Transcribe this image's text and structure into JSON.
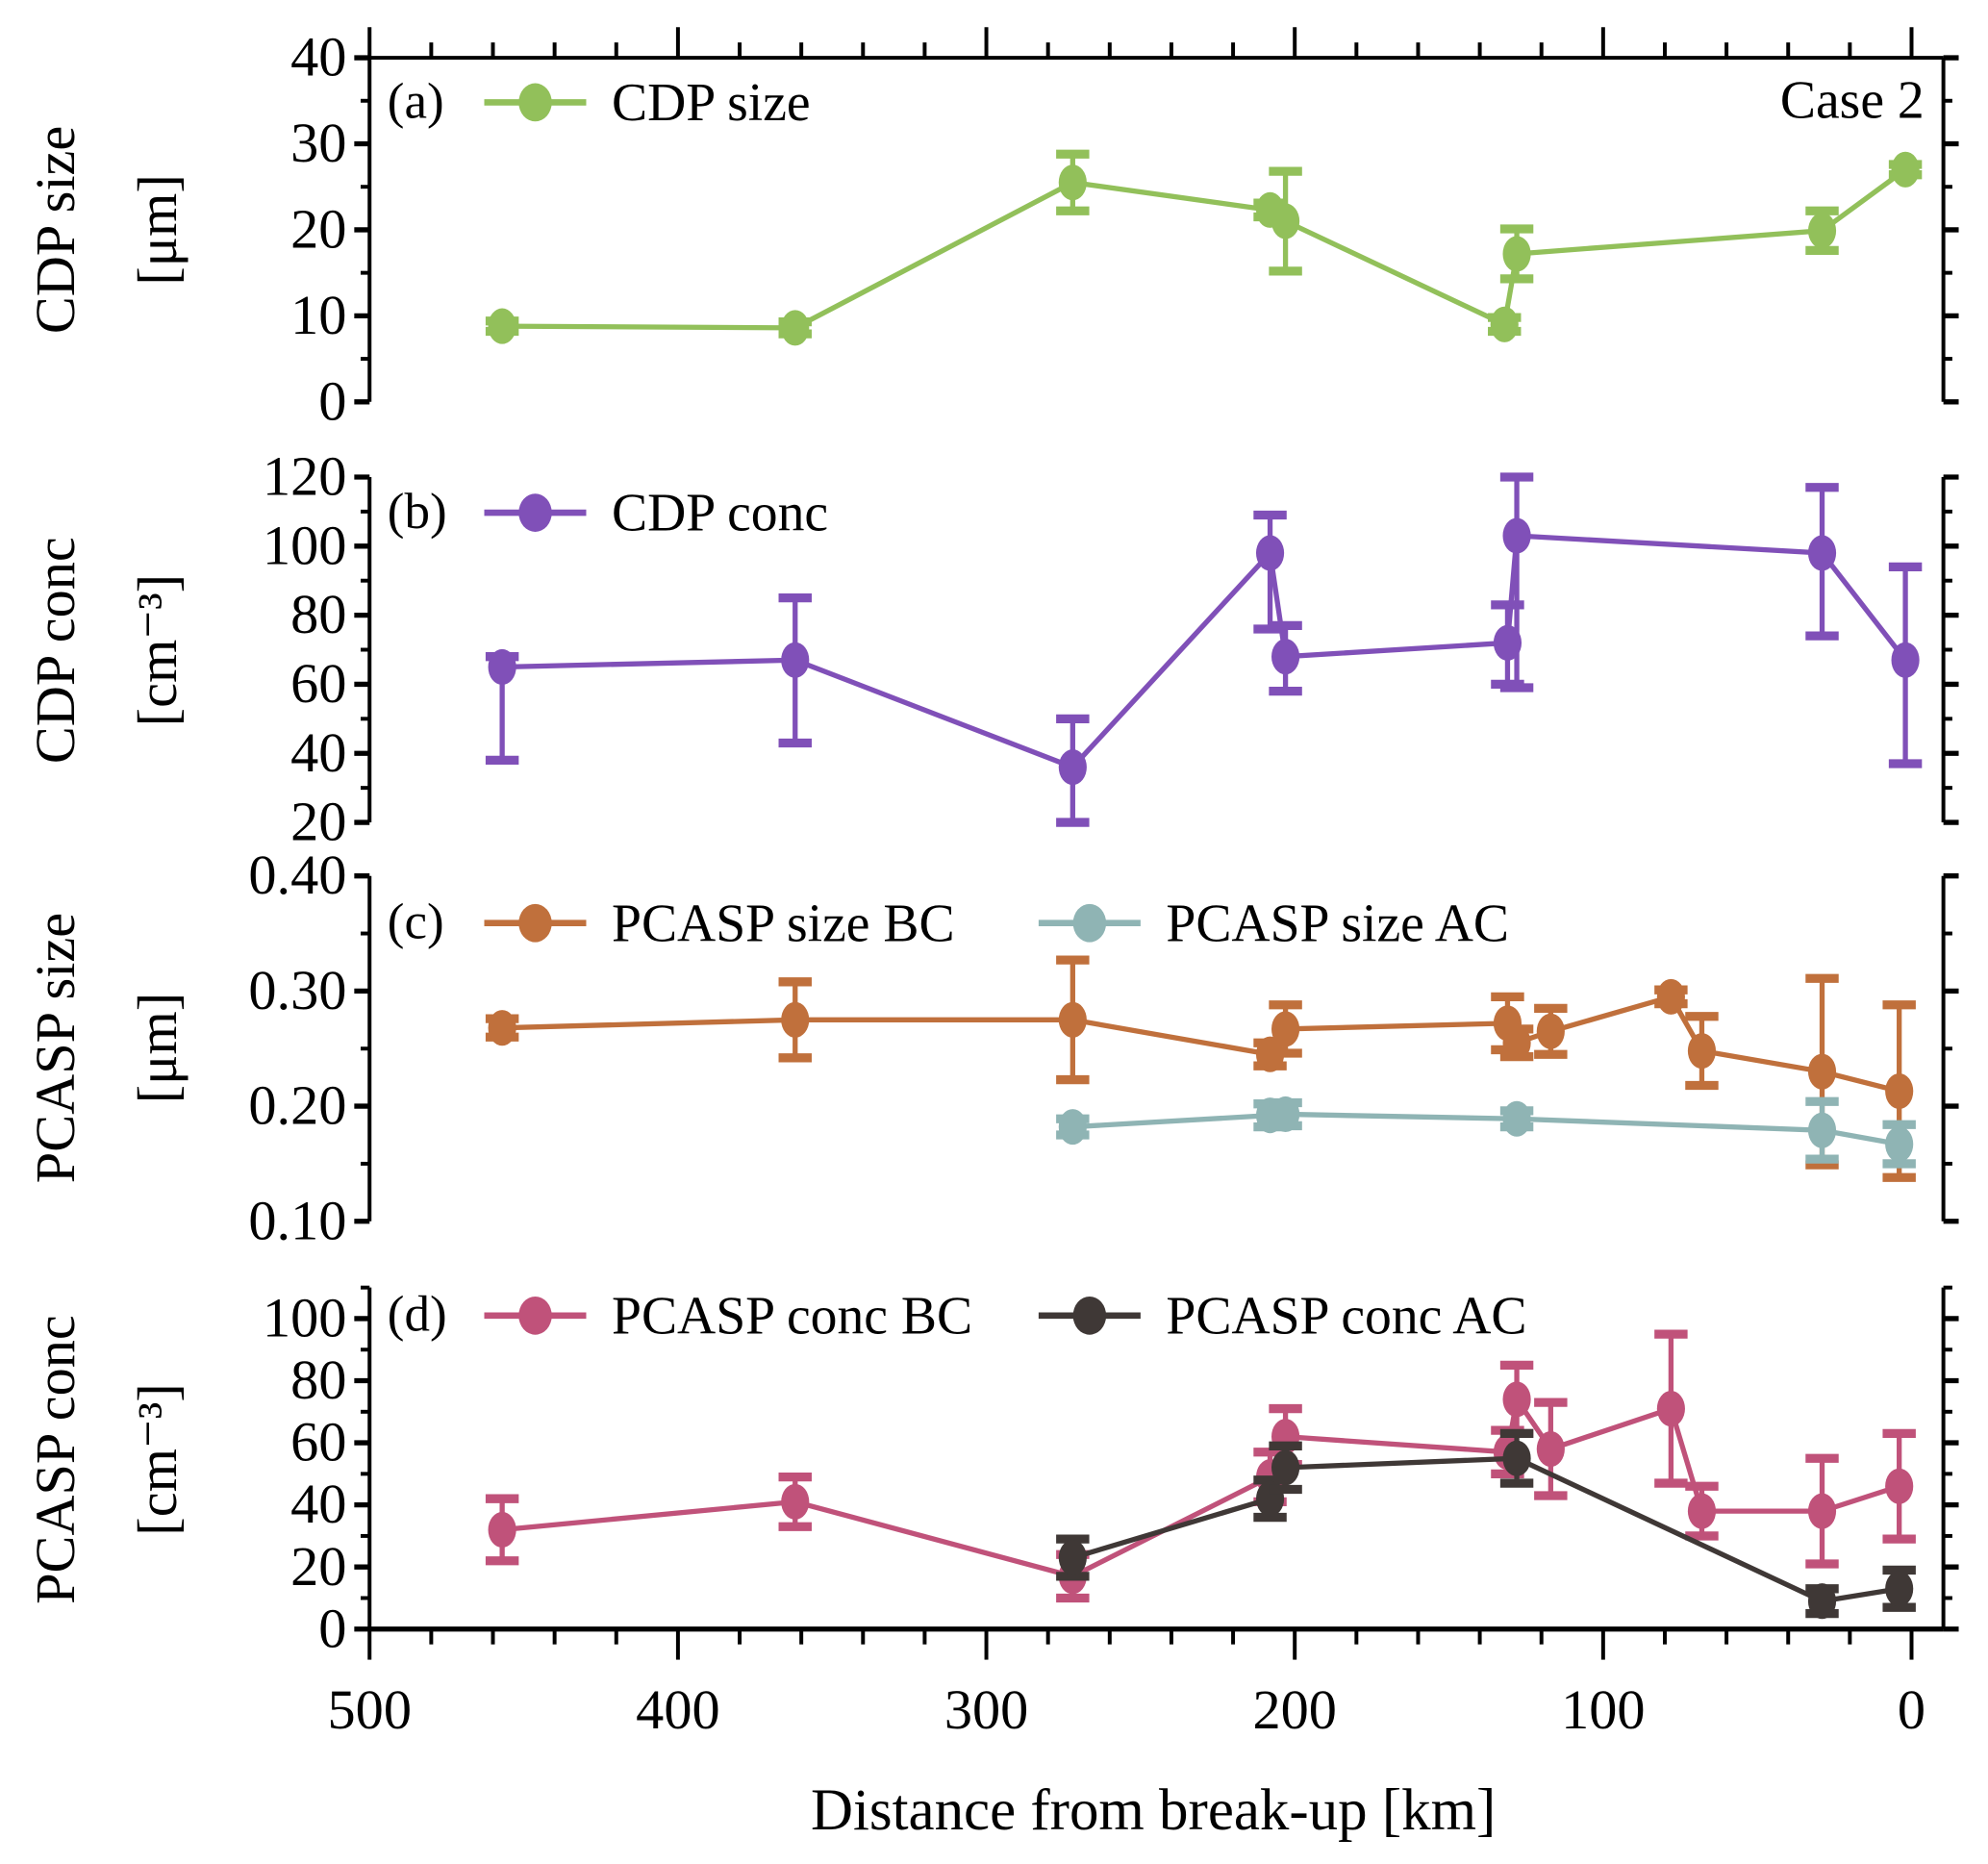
{
  "chart_data": {
    "type": "line",
    "layout": "4 vertically stacked panels sharing x-axis",
    "xlabel": "Distance from break-up [km]",
    "xlim": [
      500,
      0
    ],
    "x_reversed": true,
    "xticks": [
      500,
      400,
      300,
      200,
      100,
      0
    ],
    "annotation": "Case 2",
    "panels": [
      {
        "id": "a",
        "tag": "(a)",
        "ylabel_line1": "CDP  size",
        "ylabel_line2": "[μm]",
        "ylim": [
          0,
          40
        ],
        "yticks": [
          0,
          10,
          20,
          30,
          40
        ],
        "ytick_labels": [
          "0",
          "10",
          "20",
          "30",
          "40"
        ],
        "legend_placement": "top-left",
        "series": [
          {
            "name": "CDP  size",
            "color": "#92c05a",
            "x": [
              457,
              362,
              272,
              208,
              203,
              132,
              128,
              29,
              2
            ],
            "y": [
              8.8,
              8.6,
              25.5,
              22.3,
              21.0,
              9.0,
              17.2,
              19.9,
              27.0
            ],
            "err": [
              0.6,
              0.7,
              3.3,
              0.8,
              5.8,
              0.8,
              2.9,
              2.3,
              0.6
            ]
          }
        ]
      },
      {
        "id": "b",
        "tag": "(b)",
        "ylabel_line1": "CDP  conc",
        "ylabel_line2": "[cm⁻³]",
        "ylim": [
          20,
          120
        ],
        "yticks": [
          20,
          40,
          60,
          80,
          100,
          120
        ],
        "ytick_labels": [
          "20",
          "40",
          "60",
          "80",
          "100",
          "120"
        ],
        "legend_placement": "top-left",
        "series": [
          {
            "name": "CDP  conc",
            "color": "#8050b8",
            "x": [
              457,
              362,
              272,
              208,
              203,
              131,
              128,
              29,
              2
            ],
            "y": [
              65,
              67,
              36,
              98,
              68,
              72,
              103,
              98,
              67
            ],
            "err_low": [
              27,
              24,
              16,
              22,
              10,
              12,
              44,
              24,
              30
            ],
            "err_high": [
              3,
              18,
              14,
              11,
              9,
              11,
              17,
              19,
              27
            ]
          }
        ]
      },
      {
        "id": "c",
        "tag": "(c)",
        "ylabel_line1": "PCASP  size",
        "ylabel_line2": "[μm]",
        "ylim": [
          0.1,
          0.4
        ],
        "yticks": [
          0.1,
          0.2,
          0.3,
          0.4
        ],
        "ytick_labels": [
          "0.10",
          "0.20",
          "0.30",
          "0.40"
        ],
        "legend_placement": "top-left",
        "series": [
          {
            "name": "PCASP  size  BC",
            "color": "#c0703c",
            "x": [
              457,
              362,
              272,
              208,
              203,
              131,
              128,
              117,
              78,
              68,
              29,
              4
            ],
            "y": [
              0.268,
              0.275,
              0.275,
              0.245,
              0.267,
              0.272,
              0.255,
              0.265,
              0.295,
              0.248,
              0.23,
              0.213
            ],
            "err": [
              0.008,
              0.033,
              0.052,
              0.01,
              0.021,
              0.023,
              0.012,
              0.02,
              0.006,
              0.03,
              0.081,
              0.075
            ]
          },
          {
            "name": "PCASP  size  AC",
            "color": "#8fb4b4",
            "x": [
              272,
              208,
              203,
              128,
              29,
              4
            ],
            "y": [
              0.182,
              0.192,
              0.193,
              0.189,
              0.179,
              0.167
            ],
            "err": [
              0.007,
              0.01,
              0.01,
              0.007,
              0.025,
              0.017
            ]
          }
        ]
      },
      {
        "id": "d",
        "tag": "(d)",
        "ylabel_line1": "PCASP  conc",
        "ylabel_line2": "[cm⁻³]",
        "ylim": [
          0,
          110
        ],
        "yticks": [
          0,
          20,
          40,
          60,
          80,
          100
        ],
        "ytick_labels": [
          "0",
          "20",
          "40",
          "60",
          "80",
          "100"
        ],
        "legend_placement": "top-left",
        "series": [
          {
            "name": "PCASP  conc  BC",
            "color": "#c0527a",
            "x": [
              457,
              362,
              272,
              208,
              203,
              131,
              128,
              117,
              78,
              68,
              29,
              4
            ],
            "y": [
              32,
              41,
              17,
              49,
              62,
              57,
              74,
              58,
              71,
              38,
              38,
              46
            ],
            "err": [
              10,
              8,
              7,
              8,
              9,
              7,
              11,
              15,
              24,
              8,
              17,
              17
            ]
          },
          {
            "name": "PCASP  conc  AC",
            "color": "#3f3836",
            "x": [
              272,
              208,
              203,
              128,
              29,
              4
            ],
            "y": [
              23,
              42,
              52,
              55,
              9,
              13
            ],
            "err": [
              6,
              6,
              7,
              8,
              4,
              6
            ]
          }
        ]
      }
    ]
  }
}
